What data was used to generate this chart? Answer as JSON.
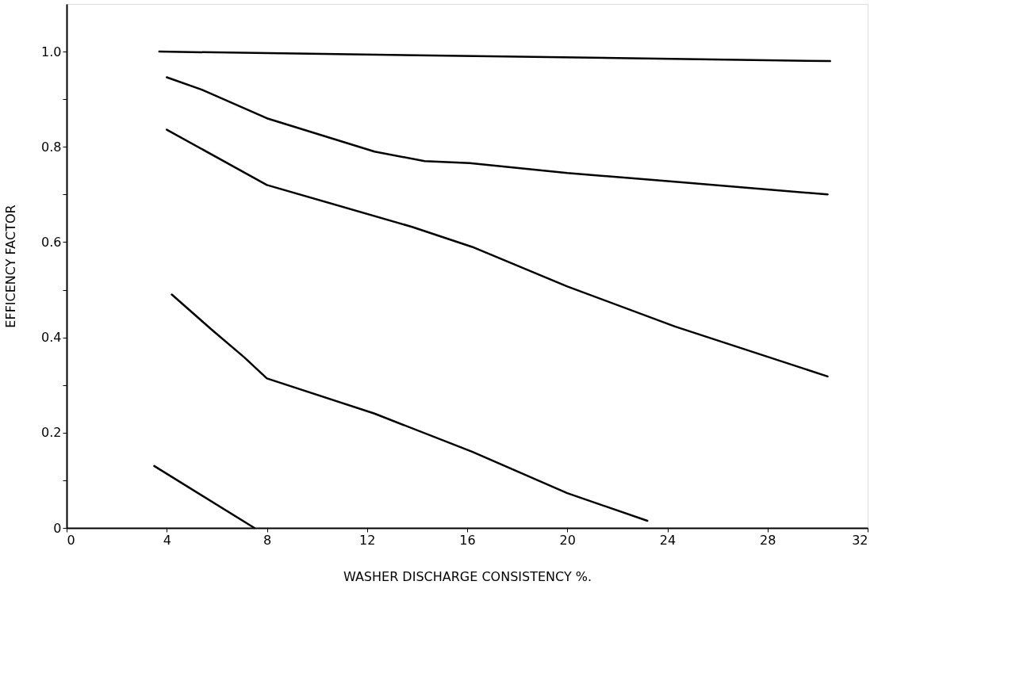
{
  "chart_data": {
    "type": "line",
    "xlabel": "WASHER DISCHARGE CONSISTENCY %.",
    "ylabel": "EFFICENCY FACTOR",
    "xlim": [
      0,
      32
    ],
    "ylim": [
      0,
      1.1
    ],
    "xticks": [
      0,
      4,
      8,
      12,
      16,
      20,
      24,
      28,
      32
    ],
    "yticks": [
      0,
      {
        "value": 0.1,
        "label": null
      },
      0.2,
      {
        "value": 0.3,
        "label": null
      },
      0.4,
      {
        "value": 0.5,
        "label": null
      },
      0.6,
      {
        "value": 0.7,
        "label": null
      },
      0.8,
      {
        "value": 0.9,
        "label": null
      },
      {
        "value": 1.0,
        "label": "1.0"
      }
    ],
    "grid": false,
    "legend": false,
    "marker": "none",
    "line_style": "solid",
    "series": [
      {
        "color": "#000000",
        "x": [
          3.7,
          30.5
        ],
        "values": [
          1.0,
          0.98
        ]
      },
      {
        "color": "#000000",
        "x": [
          4.0,
          5.4,
          8.0,
          12.3,
          14.3,
          16.1,
          20,
          24.3,
          30.4
        ],
        "values": [
          0.946,
          0.92,
          0.86,
          0.79,
          0.77,
          0.766,
          0.745,
          0.727,
          0.7
        ]
      },
      {
        "color": "#000000",
        "x": [
          4.0,
          8,
          13.8,
          16.2,
          20,
          24.3,
          30.4
        ],
        "values": [
          0.836,
          0.72,
          0.632,
          0.59,
          0.507,
          0.423,
          0.318
        ]
      },
      {
        "color": "#000000",
        "x": [
          4.2,
          5.8,
          7.1,
          8,
          12.3,
          16.2,
          20,
          23.2
        ],
        "values": [
          0.49,
          0.416,
          0.358,
          0.314,
          0.24,
          0.16,
          0.073,
          0.015
        ]
      },
      {
        "color": "#000000",
        "x": [
          3.5,
          7.5
        ],
        "values": [
          0.13,
          0.0
        ]
      }
    ]
  }
}
